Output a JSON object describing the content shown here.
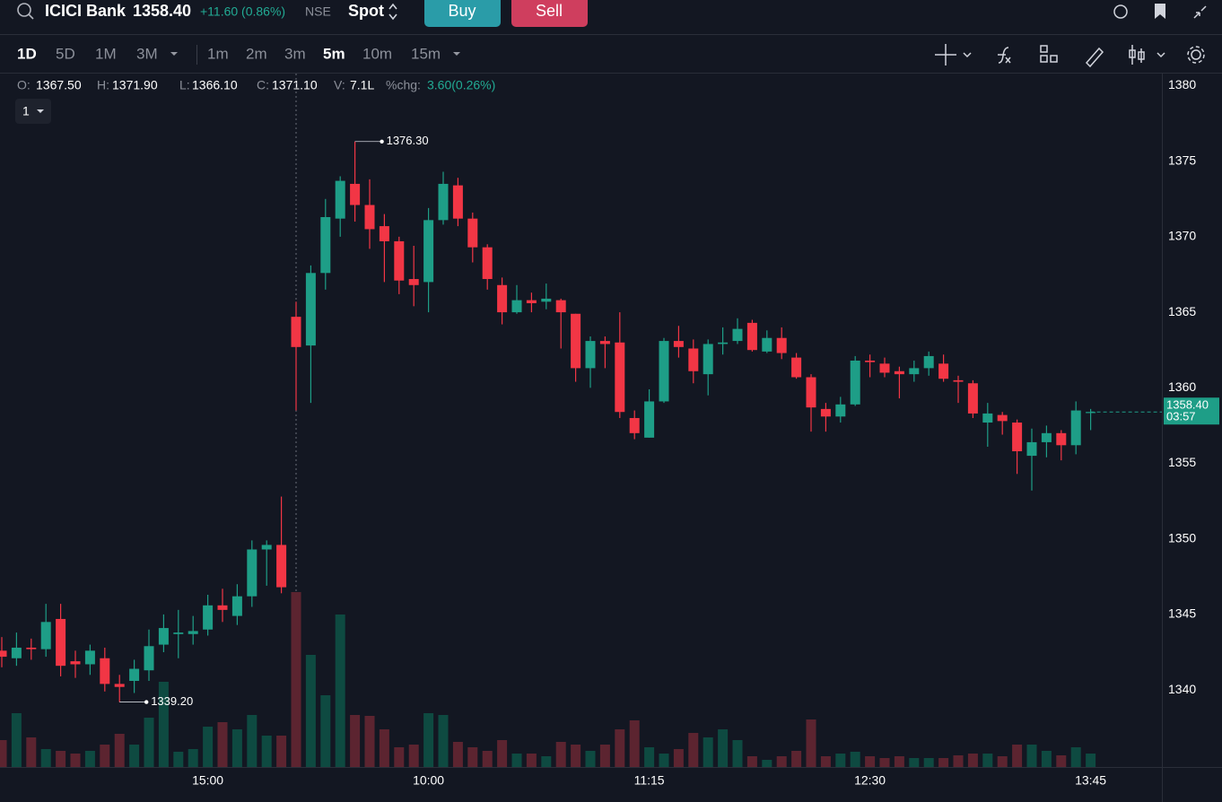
{
  "header": {
    "symbol": "ICICI Bank",
    "price": "1358.40",
    "change": "+11.60 (0.86%)",
    "exchange": "NSE",
    "segment": "Spot",
    "buy": "Buy",
    "sell": "Sell"
  },
  "toolbar": {
    "ranges": [
      "1D",
      "5D",
      "1M",
      "3M"
    ],
    "intervals": [
      "1m",
      "2m",
      "3m",
      "5m",
      "10m",
      "15m"
    ]
  },
  "legend": {
    "items": [
      {
        "label": "O:",
        "value": "1367.50"
      },
      {
        "label": "H:",
        "value": "1371.90"
      },
      {
        "label": "L:",
        "value": "1366.10"
      },
      {
        "label": "C:",
        "value": "1371.10"
      },
      {
        "label": "V:",
        "value": "7.1L"
      }
    ],
    "chg_label": "%chg:",
    "chg_value": "3.60(0.26%)",
    "pane": "1"
  },
  "chart_data": {
    "type": "candlestick",
    "categories": [
      null,
      null,
      null,
      null,
      null,
      null,
      null,
      null,
      null,
      null,
      null,
      null,
      null,
      null,
      "15:00",
      null,
      null,
      null,
      null,
      null,
      null,
      null,
      null,
      null,
      null,
      null,
      null,
      null,
      null,
      "10:00",
      null,
      null,
      null,
      null,
      null,
      null,
      null,
      null,
      null,
      null,
      null,
      null,
      null,
      null,
      "11:15",
      null,
      null,
      null,
      null,
      null,
      null,
      null,
      null,
      null,
      null,
      null,
      null,
      null,
      null,
      "12:30",
      null,
      null,
      null,
      null,
      null,
      null,
      null,
      null,
      null,
      null,
      null,
      null,
      null,
      null,
      "13:45"
    ],
    "open": [
      1342.6,
      1342.1,
      1342.8,
      1342.7,
      1344.7,
      1341.9,
      1341.7,
      1342.1,
      1340.4,
      1340.6,
      1341.3,
      1343.0,
      1343.7,
      1343.7,
      1344.0,
      1345.6,
      1344.9,
      1346.2,
      1349.3,
      1349.6,
      1364.7,
      1362.8,
      1367.6,
      1371.2,
      1373.5,
      1372.1,
      1370.7,
      1369.7,
      1367.2,
      1367.0,
      1371.1,
      1373.4,
      1371.2,
      1369.3,
      1366.8,
      1365.0,
      1365.8,
      1365.7,
      1365.8,
      1364.9,
      1361.3,
      1363.1,
      1363.0,
      1358.0,
      1356.7,
      1359.1,
      1363.1,
      1362.6,
      1360.9,
      1362.9,
      1363.1,
      1364.3,
      1362.4,
      1363.3,
      1362.0,
      1360.7,
      1358.6,
      1358.1,
      1358.9,
      1361.8,
      1361.6,
      1361.1,
      1360.9,
      1361.3,
      1361.6,
      1360.5,
      1360.3,
      1357.7,
      1358.2,
      1357.7,
      1355.5,
      1356.4,
      1357.0,
      1356.2,
      1358.4
    ],
    "high": [
      1343.5,
      1343.8,
      1343.4,
      1345.7,
      1345.7,
      1342.6,
      1343.0,
      1342.8,
      1341.0,
      1342.0,
      1344.0,
      1345.0,
      1345.3,
      1344.9,
      1346.3,
      1346.7,
      1347.0,
      1349.9,
      1349.9,
      1352.8,
      1365.7,
      1368.1,
      1372.5,
      1374.0,
      1376.3,
      1373.8,
      1371.5,
      1370.0,
      1369.4,
      1371.9,
      1374.3,
      1373.9,
      1371.6,
      1369.5,
      1367.3,
      1366.8,
      1366.3,
      1366.9,
      1365.9,
      1364.9,
      1363.4,
      1363.4,
      1365.0,
      1358.5,
      1359.9,
      1363.3,
      1364.1,
      1363.2,
      1363.2,
      1364.0,
      1364.6,
      1364.5,
      1363.8,
      1364.0,
      1362.3,
      1360.9,
      1359.0,
      1359.4,
      1362.1,
      1362.2,
      1362.0,
      1361.4,
      1361.8,
      1362.4,
      1362.2,
      1360.8,
      1360.5,
      1359.0,
      1358.4,
      1357.9,
      1357.3,
      1357.5,
      1357.2,
      1359.1,
      1358.6
    ],
    "low": [
      1341.5,
      1341.6,
      1342.0,
      1342.2,
      1340.9,
      1340.8,
      1341.0,
      1339.9,
      1339.2,
      1339.8,
      1340.6,
      1342.5,
      1342.1,
      1343.0,
      1343.6,
      1344.5,
      1344.3,
      1345.5,
      1346.9,
      1346.4,
      1358.5,
      1359.0,
      1366.5,
      1370.0,
      1371.0,
      1369.2,
      1367.0,
      1366.2,
      1365.4,
      1365.0,
      1370.8,
      1370.7,
      1368.3,
      1366.5,
      1364.2,
      1364.9,
      1365.0,
      1365.2,
      1362.6,
      1360.4,
      1360.0,
      1361.3,
      1358.0,
      1356.6,
      1356.7,
      1359.0,
      1362.0,
      1360.3,
      1359.5,
      1362.2,
      1362.9,
      1362.4,
      1362.3,
      1361.9,
      1360.6,
      1357.1,
      1357.1,
      1357.7,
      1358.8,
      1360.7,
      1360.7,
      1359.3,
      1360.4,
      1360.8,
      1360.4,
      1359.0,
      1358.0,
      1356.1,
      1356.9,
      1354.3,
      1353.2,
      1355.4,
      1355.2,
      1355.6,
      1357.2
    ],
    "close": [
      1342.2,
      1342.8,
      1342.7,
      1344.5,
      1341.6,
      1341.7,
      1342.6,
      1340.4,
      1340.2,
      1341.4,
      1342.9,
      1344.1,
      1343.8,
      1343.9,
      1345.6,
      1345.3,
      1346.2,
      1349.3,
      1349.6,
      1346.8,
      1362.7,
      1367.6,
      1371.3,
      1373.7,
      1372.1,
      1370.5,
      1369.7,
      1367.1,
      1366.8,
      1371.1,
      1373.5,
      1371.2,
      1369.3,
      1367.2,
      1365.0,
      1365.8,
      1365.6,
      1365.9,
      1365.0,
      1361.3,
      1363.1,
      1362.9,
      1358.4,
      1357.0,
      1359.1,
      1363.1,
      1362.7,
      1361.1,
      1362.9,
      1363.0,
      1363.9,
      1362.5,
      1363.3,
      1362.3,
      1360.7,
      1358.7,
      1358.1,
      1358.9,
      1361.8,
      1361.7,
      1361.0,
      1360.9,
      1361.3,
      1362.1,
      1360.6,
      1360.4,
      1358.3,
      1358.3,
      1357.8,
      1355.8,
      1356.4,
      1357.0,
      1356.2,
      1358.5,
      1358.4
    ],
    "volume": [
      30,
      60,
      33,
      20,
      18,
      15,
      18,
      25,
      37,
      25,
      55,
      95,
      17,
      20,
      45,
      50,
      42,
      58,
      35,
      35,
      195,
      125,
      80,
      170,
      58,
      57,
      42,
      22,
      25,
      60,
      58,
      28,
      22,
      18,
      30,
      15,
      15,
      12,
      28,
      25,
      18,
      25,
      42,
      52,
      22,
      15,
      20,
      38,
      33,
      42,
      30,
      12,
      8,
      12,
      18,
      53,
      12,
      15,
      17,
      12,
      10,
      12,
      10,
      10,
      10,
      13,
      15,
      15,
      12,
      25,
      25,
      18,
      13,
      22,
      15
    ],
    "up_color": "#1e9e87",
    "down_color": "#f23645",
    "up_volume_color": "#0e4a41",
    "down_volume_color": "#5c2430",
    "ylim": [
      1334.9,
      1380.8
    ],
    "yticks": [
      1340,
      1345,
      1350,
      1355,
      1360,
      1365,
      1370,
      1375,
      1380
    ],
    "annotations": [
      {
        "value": 1376.3,
        "label": "1376.30"
      },
      {
        "value": 1339.2,
        "label": "1339.20"
      }
    ],
    "last_price": {
      "value": 1358.4,
      "label": "1358.40",
      "countdown": "03:57"
    }
  }
}
